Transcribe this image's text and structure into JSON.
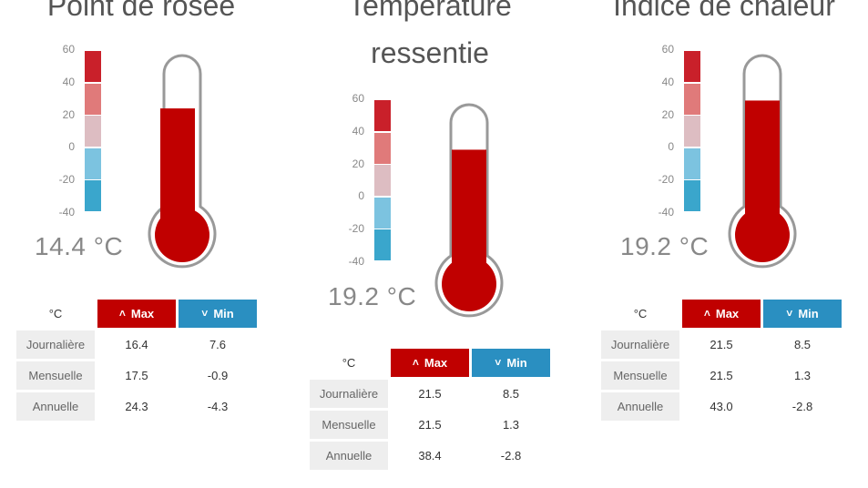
{
  "widgets": [
    {
      "title_lines": [
        "Point de rosée"
      ],
      "reading": "14.4 °C",
      "fill_value": 14.4,
      "scale": [
        "60",
        "40",
        "20",
        "0",
        "-20",
        "-40"
      ],
      "table": {
        "unit": "°C",
        "max_label": "Max",
        "min_label": "Min",
        "rows": [
          {
            "label": "Journalière",
            "max": "16.4",
            "min": "7.6"
          },
          {
            "label": "Mensuelle",
            "max": "17.5",
            "min": "-0.9"
          },
          {
            "label": "Annuelle",
            "max": "24.3",
            "min": "-4.3"
          }
        ]
      }
    },
    {
      "title_lines": [
        "Température",
        "ressentie"
      ],
      "reading": "19.2 °C",
      "fill_value": 19.2,
      "scale": [
        "60",
        "40",
        "20",
        "0",
        "-20",
        "-40"
      ],
      "table": {
        "unit": "°C",
        "max_label": "Max",
        "min_label": "Min",
        "rows": [
          {
            "label": "Journalière",
            "max": "21.5",
            "min": "8.5"
          },
          {
            "label": "Mensuelle",
            "max": "21.5",
            "min": "1.3"
          },
          {
            "label": "Annuelle",
            "max": "38.4",
            "min": "-2.8"
          }
        ]
      }
    },
    {
      "title_lines": [
        "Indice de chaleur"
      ],
      "reading": "19.2 °C",
      "fill_value": 19.2,
      "scale": [
        "60",
        "40",
        "20",
        "0",
        "-20",
        "-40"
      ],
      "table": {
        "unit": "°C",
        "max_label": "Max",
        "min_label": "Min",
        "rows": [
          {
            "label": "Journalière",
            "max": "21.5",
            "min": "8.5"
          },
          {
            "label": "Mensuelle",
            "max": "21.5",
            "min": "1.3"
          },
          {
            "label": "Annuelle",
            "max": "43.0",
            "min": "-2.8"
          }
        ]
      }
    }
  ],
  "colors": {
    "mercury": "#c00000",
    "scale_segments": [
      "#c9202a",
      "#e07a7a",
      "#ddbdc2",
      "#7cc3e0",
      "#3aa6cc"
    ],
    "max_header": "#c00000",
    "min_header": "#2a8fc1"
  },
  "icons": {
    "max": "chevron-up-icon",
    "min": "chevron-down-icon"
  }
}
